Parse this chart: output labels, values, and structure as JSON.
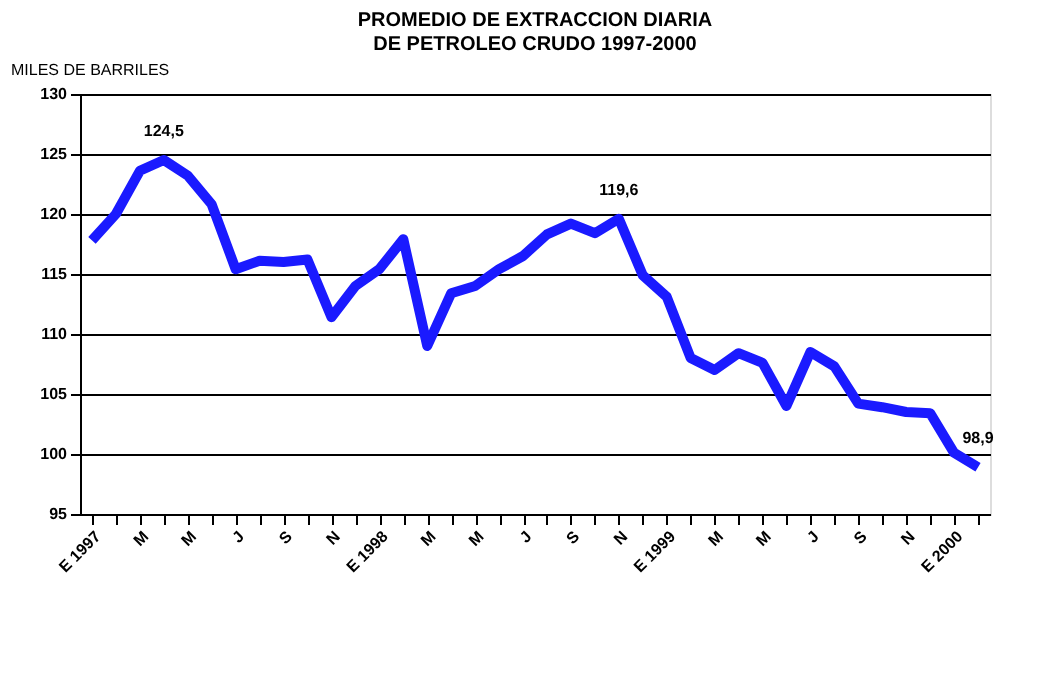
{
  "chart_data": {
    "type": "line",
    "title": "PROMEDIO DE EXTRACCION DIARIA DE PETROLEO CRUDO 1997-2000",
    "ylabel": "MILES DE BARRILES",
    "categories": [
      "E 1997",
      null,
      "M",
      null,
      "M",
      null,
      "J",
      null,
      "S",
      null,
      "N",
      null,
      "E 1998",
      null,
      "M",
      null,
      "M",
      null,
      "J",
      null,
      "S",
      null,
      "N",
      null,
      "E 1999",
      null,
      "M",
      null,
      "M",
      null,
      "J",
      null,
      "S",
      null,
      "N",
      null,
      "E 2000",
      null
    ],
    "series": [
      {
        "color": "#1a1aff",
        "values": [
          117.8,
          120.0,
          123.6,
          124.5,
          123.2,
          120.8,
          115.4,
          116.1,
          116.0,
          116.2,
          111.4,
          114.0,
          115.4,
          117.9,
          109.0,
          113.4,
          114.0,
          115.4,
          116.5,
          118.3,
          119.2,
          118.4,
          119.6,
          114.9,
          113.1,
          108.0,
          107.0,
          108.4,
          107.6,
          104.0,
          108.5,
          107.3,
          104.2,
          103.9,
          103.5,
          103.4,
          100.1,
          98.9
        ],
        "value_labels": [
          null,
          null,
          null,
          "124,5",
          null,
          null,
          null,
          null,
          null,
          null,
          null,
          null,
          null,
          null,
          null,
          null,
          null,
          null,
          null,
          null,
          null,
          null,
          "119,6",
          null,
          null,
          null,
          null,
          null,
          null,
          null,
          null,
          null,
          null,
          null,
          null,
          null,
          null,
          "98,9"
        ]
      }
    ],
    "ylim": [
      95,
      130
    ],
    "yticks": [
      95,
      100,
      105,
      110,
      115,
      120,
      125,
      130
    ],
    "grid": "y",
    "marker": "none",
    "line_style": "solid"
  }
}
